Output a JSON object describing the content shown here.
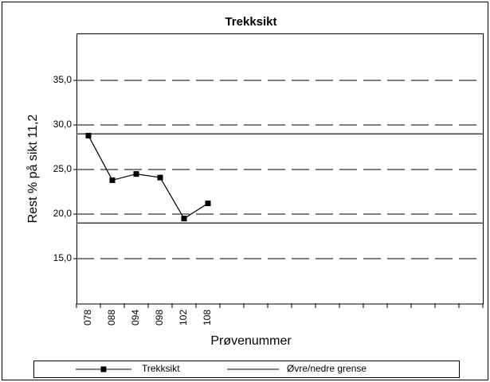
{
  "chart_data": {
    "type": "line",
    "title": "Trekksikt",
    "x_label": "Prøvenummer",
    "y_label": "Rest % på sikt 11,2",
    "categories": [
      "078",
      "088",
      "094",
      "098",
      "102",
      "108",
      null,
      null,
      null,
      null,
      null,
      null,
      null,
      null,
      null,
      null,
      null
    ],
    "series": [
      {
        "name": "Trekksikt",
        "color": "#000000",
        "values": [
          28.8,
          23.8,
          24.5,
          24.1,
          19.5,
          21.2,
          null,
          null,
          null,
          null,
          null,
          null,
          null,
          null,
          null,
          null,
          null
        ]
      }
    ],
    "limit_lines": {
      "name": "Øvre/nedre grense",
      "color": "#000000",
      "values": [
        29,
        19
      ]
    },
    "ylim": [
      10,
      40
    ],
    "yticks": [
      {
        "value": 15,
        "label": "15,0"
      },
      {
        "value": 20,
        "label": "20,0"
      },
      {
        "value": 25,
        "label": "25,0"
      },
      {
        "value": 30,
        "label": "30,0"
      },
      {
        "value": 35,
        "label": "35,0"
      }
    ],
    "grid": true
  }
}
